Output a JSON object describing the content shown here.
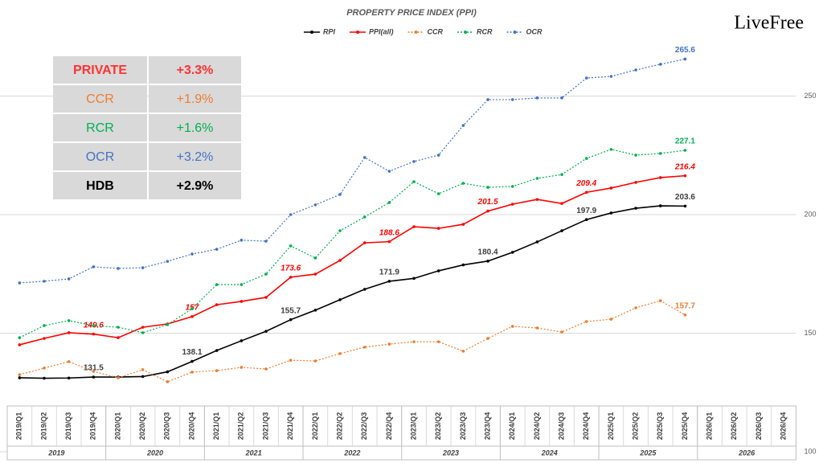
{
  "chart_data": {
    "type": "line",
    "title": "PROPERTY PRICE INDEX (PPI)",
    "brand": "LiveFree",
    "categories": [
      "2019/Q1",
      "2019/Q2",
      "2019/Q3",
      "2019/Q4",
      "2020/Q1",
      "2020/Q2",
      "2020/Q3",
      "2020/Q4",
      "2021/Q1",
      "2021/Q2",
      "2021/Q3",
      "2021/Q4",
      "2022/Q1",
      "2022/Q2",
      "2022/Q3",
      "2022/Q4",
      "2023/Q1",
      "2023/Q2",
      "2023/Q3",
      "2023/Q4",
      "2024/Q1",
      "2024/Q2",
      "2024/Q3",
      "2024/Q4",
      "2025/Q1",
      "2025/Q2",
      "2025/Q3",
      "2025/Q4",
      "2026/Q1",
      "2026/Q2",
      "2026/Q3",
      "2026/Q4"
    ],
    "years": [
      "2019",
      "2020",
      "2021",
      "2022",
      "2023",
      "2024",
      "2025",
      "2026"
    ],
    "ylim": [
      100,
      280
    ],
    "yticks": [
      100,
      150,
      200,
      250
    ],
    "grid": true,
    "series": [
      {
        "name": "RPI",
        "color": "#000000",
        "dash": "solid",
        "values": [
          131.2,
          131.0,
          131.1,
          131.5,
          131.5,
          131.7,
          133.7,
          138.1,
          142.7,
          146.8,
          150.8,
          155.7,
          159.7,
          164.1,
          168.5,
          171.9,
          173.1,
          176.3,
          178.8,
          180.4,
          184.1,
          188.5,
          193.2,
          197.9,
          200.7,
          202.7,
          203.7,
          203.6,
          null,
          null,
          null,
          null
        ],
        "value_labels": [
          null,
          null,
          null,
          "131.5",
          null,
          null,
          null,
          "138.1",
          null,
          null,
          null,
          "155.7",
          null,
          null,
          null,
          "171.9",
          null,
          null,
          null,
          "180.4",
          null,
          null,
          null,
          "197.9",
          null,
          null,
          null,
          "203.6",
          null,
          null,
          null,
          null
        ]
      },
      {
        "name": "PPI(all)",
        "color": "#ff0000",
        "dash": "solid",
        "values": [
          145.1,
          147.8,
          150.2,
          149.6,
          148.1,
          152.5,
          153.9,
          157,
          162.0,
          163.4,
          165.1,
          173.6,
          174.9,
          180.7,
          188.1,
          188.6,
          194.9,
          194.2,
          195.9,
          201.5,
          204.4,
          206.4,
          204.7,
          209.4,
          211.2,
          213.6,
          215.6,
          216.4,
          null,
          null,
          null,
          null
        ],
        "value_labels": [
          null,
          null,
          null,
          "149.6",
          null,
          null,
          null,
          "157",
          null,
          null,
          null,
          "173.6",
          null,
          null,
          null,
          "188.6",
          null,
          null,
          null,
          "201.5",
          null,
          null,
          null,
          "209.4",
          null,
          null,
          null,
          "216.4",
          null,
          null,
          null,
          null
        ]
      },
      {
        "name": "CCR",
        "color": "#ed7d31",
        "dash": "dotted",
        "values": [
          132.5,
          135.3,
          138.0,
          133.9,
          131.2,
          134.6,
          129.5,
          133.6,
          134.2,
          135.6,
          134.9,
          138.6,
          138.3,
          141.4,
          144.1,
          145.4,
          146.4,
          146.4,
          142.4,
          147.8,
          152.9,
          152.2,
          150.5,
          154.9,
          155.9,
          160.7,
          163.7,
          157.7,
          null,
          null,
          null,
          null
        ],
        "value_labels": [
          null,
          null,
          null,
          null,
          null,
          null,
          null,
          null,
          null,
          null,
          null,
          null,
          null,
          null,
          null,
          null,
          null,
          null,
          null,
          null,
          null,
          null,
          null,
          null,
          null,
          null,
          null,
          "157.7",
          null,
          null,
          null,
          null
        ]
      },
      {
        "name": "RCR",
        "color": "#00b050",
        "dash": "dotted",
        "values": [
          148.1,
          153.2,
          155.3,
          153.2,
          152.5,
          150.2,
          153.6,
          160.3,
          170.5,
          170.5,
          174.9,
          186.8,
          181.7,
          193.2,
          199.0,
          205.1,
          213.9,
          208.8,
          213.2,
          211.5,
          211.9,
          215.3,
          216.9,
          223.7,
          227.5,
          225.1,
          225.8,
          227.1,
          null,
          null,
          null,
          null
        ],
        "value_labels": [
          null,
          null,
          null,
          null,
          null,
          null,
          null,
          null,
          null,
          null,
          null,
          null,
          null,
          null,
          null,
          null,
          null,
          null,
          null,
          null,
          null,
          null,
          null,
          null,
          null,
          null,
          null,
          "227.1",
          null,
          null,
          null,
          null
        ]
      },
      {
        "name": "OCR",
        "color": "#4472c4",
        "dash": "dotted",
        "values": [
          171.2,
          171.9,
          172.9,
          178.0,
          177.3,
          177.6,
          180.3,
          183.4,
          185.4,
          189.2,
          188.8,
          200.0,
          204.1,
          208.5,
          224.1,
          218.3,
          222.4,
          225.1,
          237.6,
          248.5,
          248.5,
          249.2,
          249.2,
          257.6,
          258.3,
          261.0,
          263.4,
          265.6,
          null,
          null,
          null,
          null
        ],
        "value_labels": [
          null,
          null,
          null,
          null,
          null,
          null,
          null,
          null,
          null,
          null,
          null,
          null,
          null,
          null,
          null,
          null,
          null,
          null,
          null,
          null,
          null,
          null,
          null,
          null,
          null,
          null,
          null,
          "265.6",
          null,
          null,
          null,
          null
        ]
      }
    ],
    "table": {
      "rows": [
        [
          "PRIVATE",
          "+3.3%"
        ],
        [
          "CCR",
          "+1.9%"
        ],
        [
          "RCR",
          "+1.6%"
        ],
        [
          "OCR",
          "+3.2%"
        ],
        [
          "HDB",
          "+2.9%"
        ]
      ],
      "colors": [
        "#ff3333",
        "#ed7d31",
        "#00b050",
        "#4472c4",
        "#000000"
      ],
      "bold": [
        true,
        false,
        false,
        false,
        true
      ]
    }
  }
}
